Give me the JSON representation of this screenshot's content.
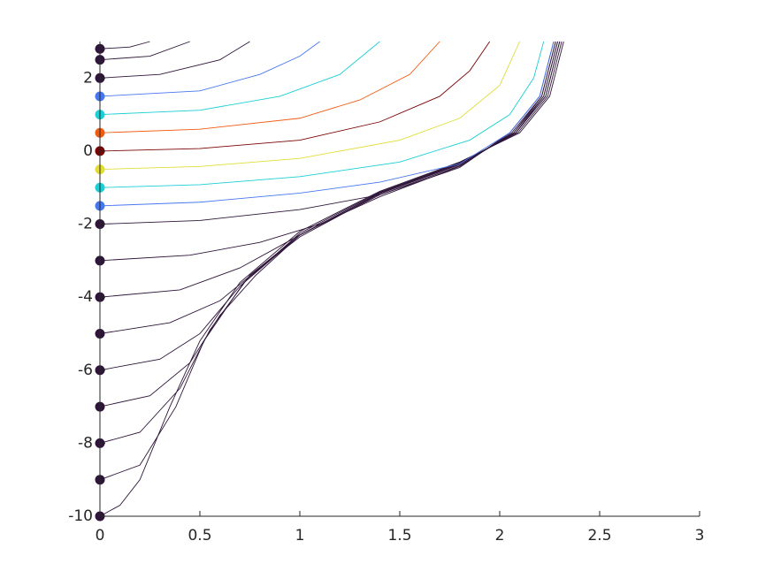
{
  "chart_data": {
    "type": "line",
    "xlim": [
      0,
      3
    ],
    "xticks": [
      0,
      0.5,
      1,
      1.5,
      2,
      2.5,
      3
    ],
    "ylim": [
      -10,
      3
    ],
    "yticks": [
      -10,
      -8,
      -6,
      -4,
      -2,
      0,
      2
    ],
    "markers": true,
    "series": [
      {
        "color": "#2e1539",
        "x": [
          0,
          0.1,
          0.2,
          0.35,
          0.5,
          0.7,
          1.0,
          1.4,
          1.8,
          2.1,
          2.25,
          2.32
        ],
        "values": [
          -10,
          -9.7,
          -9,
          -7,
          -5.2,
          -3.6,
          -2.2,
          -1.1,
          -0.3,
          0.5,
          1.5,
          3
        ]
      },
      {
        "color": "#2e1539",
        "x": [
          0,
          0.2,
          0.38,
          0.52,
          0.72,
          1.0,
          1.4,
          1.8,
          2.09,
          2.24,
          2.31
        ],
        "values": [
          -9,
          -8.6,
          -7,
          -5.2,
          -3.6,
          -2.25,
          -1.12,
          -0.32,
          0.5,
          1.5,
          3
        ]
      },
      {
        "color": "#2e1539",
        "x": [
          0,
          0.2,
          0.4,
          0.55,
          0.75,
          1.0,
          1.4,
          1.8,
          2.08,
          2.23,
          2.3
        ],
        "values": [
          -8,
          -7.7,
          -6.5,
          -4.9,
          -3.4,
          -2.3,
          -1.15,
          -0.35,
          0.5,
          1.5,
          3
        ]
      },
      {
        "color": "#2e1539",
        "x": [
          0,
          0.25,
          0.45,
          0.6,
          0.78,
          1.0,
          1.4,
          1.8,
          2.08,
          2.23,
          2.3
        ],
        "values": [
          -7,
          -6.7,
          -5.8,
          -4.5,
          -3.4,
          -2.3,
          -1.14,
          -0.34,
          0.5,
          1.5,
          3
        ]
      },
      {
        "color": "#2e1539",
        "x": [
          0,
          0.3,
          0.5,
          0.7,
          1.0,
          1.4,
          1.8,
          2.08,
          2.22,
          2.29
        ],
        "values": [
          -6,
          -5.7,
          -5,
          -3.7,
          -2.3,
          -1.15,
          -0.35,
          0.5,
          1.5,
          3
        ]
      },
      {
        "color": "#2e1539",
        "x": [
          0,
          0.35,
          0.6,
          0.8,
          1.0,
          1.4,
          1.8,
          2.07,
          2.22,
          2.29
        ],
        "values": [
          -5,
          -4.7,
          -4.1,
          -3.2,
          -2.35,
          -1.17,
          -0.37,
          0.5,
          1.5,
          3
        ]
      },
      {
        "color": "#2e1539",
        "x": [
          0,
          0.4,
          0.7,
          1.0,
          1.4,
          1.8,
          2.07,
          2.21,
          2.28
        ],
        "values": [
          -4,
          -3.8,
          -3.2,
          -2.3,
          -1.2,
          -0.4,
          0.5,
          1.5,
          3
        ]
      },
      {
        "color": "#2e1539",
        "x": [
          0,
          0.45,
          0.8,
          1.1,
          1.4,
          1.8,
          2.06,
          2.21,
          2.28
        ],
        "values": [
          -3,
          -2.85,
          -2.5,
          -2.0,
          -1.25,
          -0.42,
          0.5,
          1.5,
          3
        ]
      },
      {
        "color": "#2e1539",
        "x": [
          0,
          0.5,
          1.0,
          1.4,
          1.8,
          2.05,
          2.2,
          2.27
        ],
        "values": [
          -2,
          -1.9,
          -1.6,
          -1.2,
          -0.45,
          0.5,
          1.5,
          3
        ]
      },
      {
        "color": "#4777ef",
        "x": [
          0,
          0.5,
          1.0,
          1.4,
          1.8,
          2.05,
          2.2,
          2.27
        ],
        "values": [
          -1.5,
          -1.4,
          -1.15,
          -0.85,
          -0.35,
          0.5,
          1.5,
          3
        ]
      },
      {
        "color": "#1bcfd4",
        "x": [
          0,
          0.5,
          1.0,
          1.5,
          1.85,
          2.05,
          2.17,
          2.22
        ],
        "values": [
          -1,
          -0.92,
          -0.7,
          -0.3,
          0.3,
          1.0,
          2,
          3
        ]
      },
      {
        "color": "#e1dd37",
        "x": [
          0,
          0.5,
          1.0,
          1.5,
          1.8,
          2.0,
          2.1
        ],
        "values": [
          -0.5,
          -0.42,
          -0.2,
          0.3,
          0.9,
          1.8,
          3
        ]
      },
      {
        "color": "#7a0403",
        "x": [
          0,
          0.5,
          1.0,
          1.4,
          1.7,
          1.85,
          1.95
        ],
        "values": [
          0,
          0.07,
          0.3,
          0.8,
          1.5,
          2.2,
          3
        ]
      },
      {
        "color": "#f05b12",
        "x": [
          0,
          0.5,
          1.0,
          1.3,
          1.55,
          1.7
        ],
        "values": [
          0.5,
          0.6,
          0.9,
          1.4,
          2.1,
          3
        ]
      },
      {
        "color": "#1bcfd4",
        "x": [
          0,
          0.5,
          0.9,
          1.2,
          1.4
        ],
        "values": [
          1,
          1.12,
          1.5,
          2.1,
          3
        ]
      },
      {
        "color": "#4777ef",
        "x": [
          0,
          0.5,
          0.8,
          1.0,
          1.1
        ],
        "values": [
          1.5,
          1.65,
          2.1,
          2.6,
          3
        ]
      },
      {
        "color": "#2e1539",
        "x": [
          0,
          0.3,
          0.6,
          0.75
        ],
        "values": [
          2,
          2.1,
          2.5,
          3
        ]
      },
      {
        "color": "#2e1539",
        "x": [
          0,
          0.25,
          0.45
        ],
        "values": [
          2.5,
          2.6,
          3
        ]
      },
      {
        "color": "#2e1539",
        "x": [
          0,
          0.15,
          0.25
        ],
        "values": [
          2.8,
          2.85,
          3
        ]
      }
    ]
  }
}
